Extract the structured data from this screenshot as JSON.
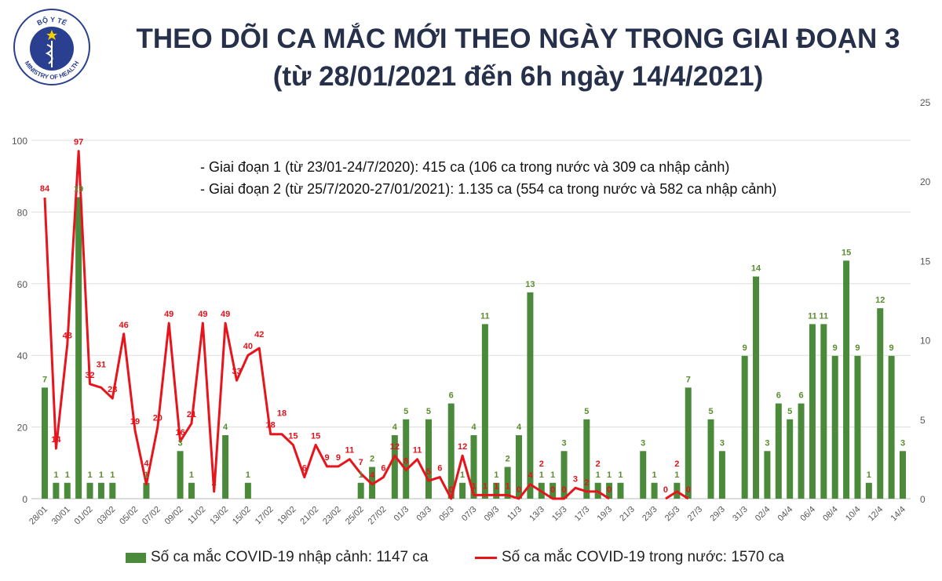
{
  "logo": {
    "top_text": "BỘ Y TẾ",
    "bottom_text": "MINISTRY OF HEALTH"
  },
  "header": {
    "title_line1": "THEO DÕI CA MẮC MỚI THEO NGÀY TRONG GIAI ĐOẠN 3",
    "title_line2": "(từ 28/01/2021 đến 6h ngày 14/4/2021)"
  },
  "notes": [
    "- Giai đoạn 1 (từ 23/01-24/7/2020): 415 ca (106 ca trong nước và 309 ca nhập cảnh)",
    "- Giai đoạn 2 (từ 25/7/2020-27/01/2021): 1.135 ca (554 ca trong nước và 582 ca nhập cảnh)"
  ],
  "colors": {
    "bar": "#4a8a3a",
    "bar_label": "#5b8c2f",
    "line": "#e8141c",
    "line_label": "#e0141c",
    "grid": "#dddddd"
  },
  "chart_data": {
    "type": "bar+line",
    "x": [
      "28/01",
      "29/01",
      "30/01",
      "31/01",
      "01/02",
      "02/02",
      "03/02",
      "04/02",
      "05/02",
      "06/02",
      "07/02",
      "08/02",
      "09/02",
      "10/02",
      "11/02",
      "12/02",
      "13/02",
      "14/02",
      "15/02",
      "16/02",
      "17/02",
      "18/02",
      "19/02",
      "20/02",
      "21/02",
      "22/02",
      "23/02",
      "24/02",
      "25/02",
      "26/02",
      "27/02",
      "28/02",
      "01/3",
      "02/3",
      "03/3",
      "04/3",
      "05/3",
      "06/3",
      "07/3",
      "08/3",
      "09/3",
      "10/3",
      "11/3",
      "12/3",
      "13/3",
      "14/3",
      "15/3",
      "16/3",
      "17/3",
      "18/3",
      "19/3",
      "20/3",
      "21/3",
      "22/3",
      "23/3",
      "24/3",
      "25/3",
      "26/3",
      "27/3",
      "28/3",
      "29/3",
      "30/3",
      "31/3",
      "01/4",
      "02/4",
      "03/4",
      "04/4",
      "05/4",
      "06/4",
      "07/4",
      "08/4",
      "09/4",
      "10/4",
      "11/4",
      "12/4",
      "13/4",
      "14/4"
    ],
    "x_tick_every": 2,
    "series": [
      {
        "name": "Số ca mắc COVID-19 nhập cảnh: 1147 ca",
        "type": "bar",
        "axis": "right",
        "values": [
          7,
          1,
          1,
          19,
          1,
          1,
          1,
          0,
          0,
          1,
          0,
          0,
          3,
          1,
          0,
          0,
          4,
          0,
          1,
          0,
          0,
          0,
          0,
          0,
          0,
          0,
          0,
          0,
          1,
          2,
          0,
          4,
          5,
          0,
          5,
          0,
          6,
          1,
          4,
          11,
          1,
          2,
          4,
          13,
          1,
          1,
          3,
          0,
          5,
          1,
          1,
          1,
          0,
          3,
          1,
          0,
          1,
          7,
          0,
          5,
          3,
          0,
          9,
          14,
          3,
          6,
          5,
          6,
          11,
          11,
          9,
          15,
          9,
          1,
          12,
          9,
          3
        ]
      },
      {
        "name": "Số ca mắc COVID-19 trong nước: 1570 ca",
        "type": "line",
        "axis": "left",
        "values": [
          84,
          14,
          43,
          97,
          32,
          31,
          28,
          46,
          19,
          4,
          20,
          49,
          16,
          21,
          49,
          2,
          49,
          33,
          40,
          42,
          18,
          18,
          15,
          6,
          15,
          9,
          9,
          11,
          7,
          4,
          6,
          12,
          8,
          11,
          5,
          6,
          0,
          12,
          1,
          1,
          1,
          1,
          0,
          4,
          2,
          0,
          0,
          3,
          2,
          2,
          0,
          null,
          null,
          null,
          null,
          0,
          2,
          0,
          null,
          null,
          null,
          null,
          null,
          null,
          null,
          null,
          null,
          null,
          null,
          null,
          null,
          null,
          null,
          null,
          null,
          null,
          null
        ]
      }
    ],
    "left_axis": {
      "range": [
        0,
        100
      ],
      "ticks": [
        "0",
        "20",
        "40",
        "60",
        "80",
        "100"
      ]
    },
    "right_axis": {
      "range": [
        0,
        25
      ],
      "ticks": [
        "0",
        "5",
        "10",
        "15",
        "20",
        "25"
      ]
    },
    "grid": true,
    "legend": "bottom"
  }
}
